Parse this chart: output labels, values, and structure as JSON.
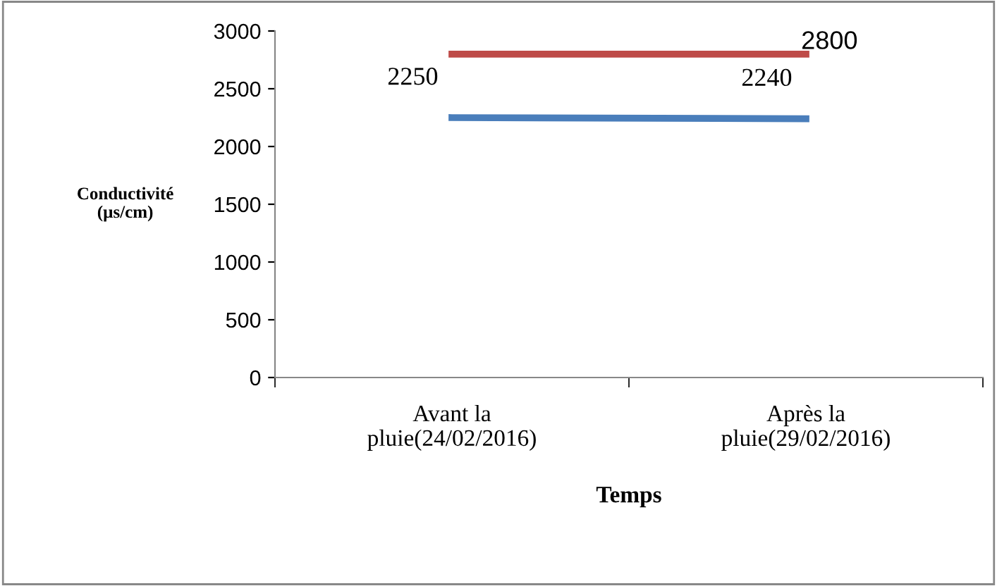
{
  "chart_data": {
    "type": "line",
    "xlabel": "Temps",
    "ylabel": "Conductivité\n(µs/cm)",
    "categories": [
      "Avant la\npluie(24/02/2016)",
      "Après la\npluie(29/02/2016)"
    ],
    "series": [
      {
        "color": "#4a7ebb",
        "values": [
          2250,
          2240
        ],
        "value_labels": [
          "2250",
          "2240"
        ]
      },
      {
        "color": "#be4b48",
        "values": [
          2800,
          2800
        ],
        "value_labels": [
          null,
          "2800"
        ]
      }
    ],
    "ylim": [
      0,
      3000
    ],
    "yticks": [
      0,
      500,
      1000,
      1500,
      2000,
      2500,
      3000
    ],
    "grid": false,
    "legend": false,
    "marker": "none",
    "line_style": "solid"
  }
}
